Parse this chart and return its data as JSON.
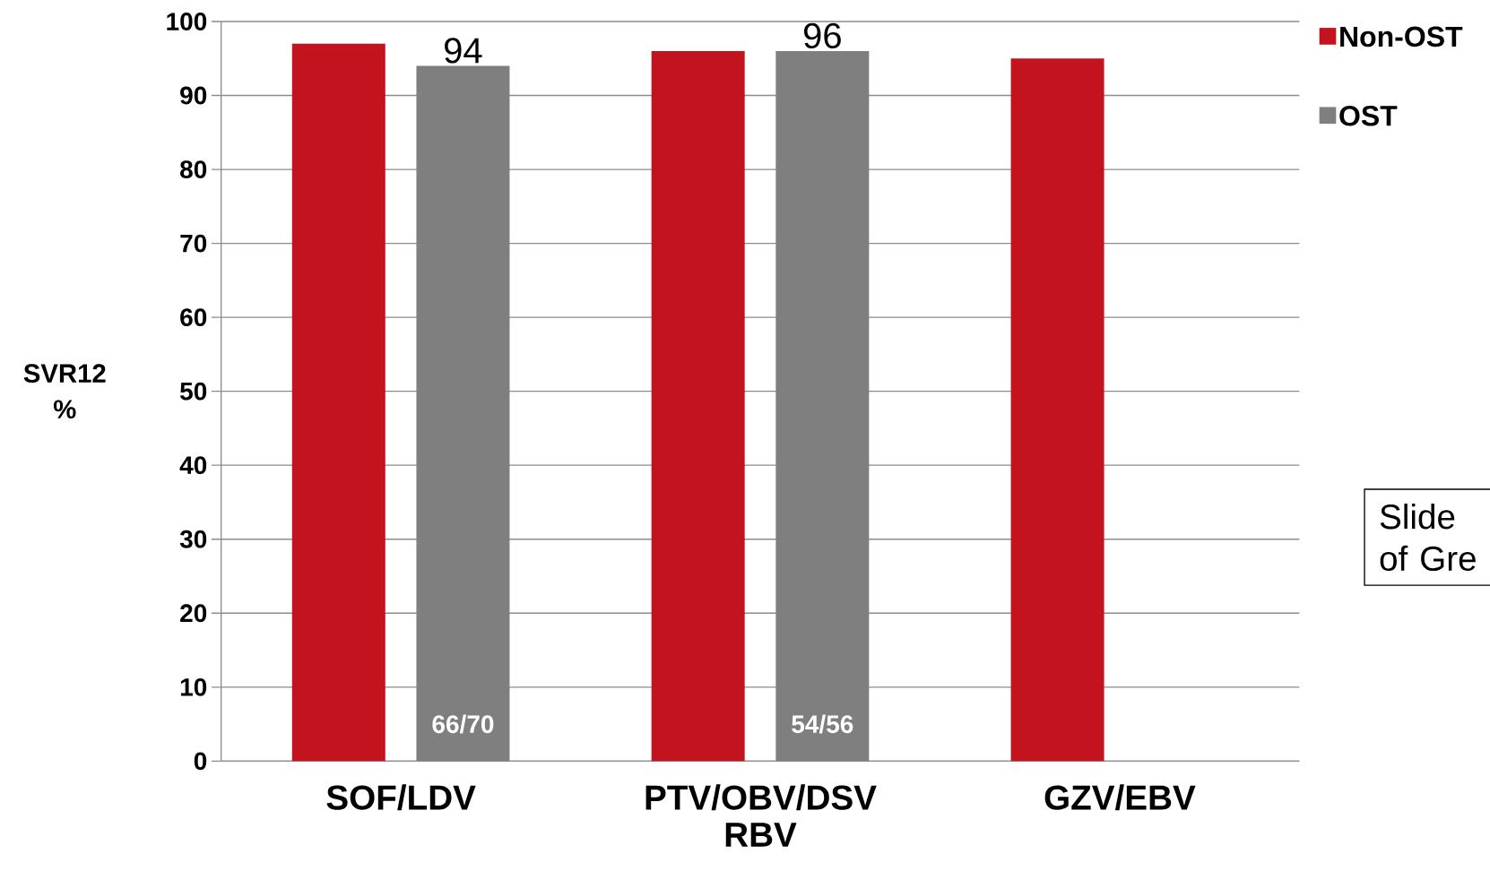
{
  "chart_data": {
    "type": "bar",
    "categories": [
      "SOF/LDV",
      "PTV/OBV/DSV RBV",
      "GZV/EBV"
    ],
    "series": [
      {
        "name": "Non-OST",
        "color": "#c2131e",
        "values": [
          97,
          96,
          95
        ]
      },
      {
        "name": "OST",
        "color": "#7f7f7f",
        "values": [
          94,
          96,
          null
        ],
        "value_labels": [
          "94",
          "96",
          null
        ]
      }
    ],
    "ylabel": "SVR12 %",
    "ylim": [
      0,
      100
    ],
    "yticks": [
      0,
      10,
      20,
      30,
      40,
      50,
      60,
      70,
      80,
      90,
      100
    ],
    "grid": "y",
    "legend": "top right",
    "annotations": [
      "66/70",
      "54/56",
      "Slide of Gre"
    ]
  }
}
